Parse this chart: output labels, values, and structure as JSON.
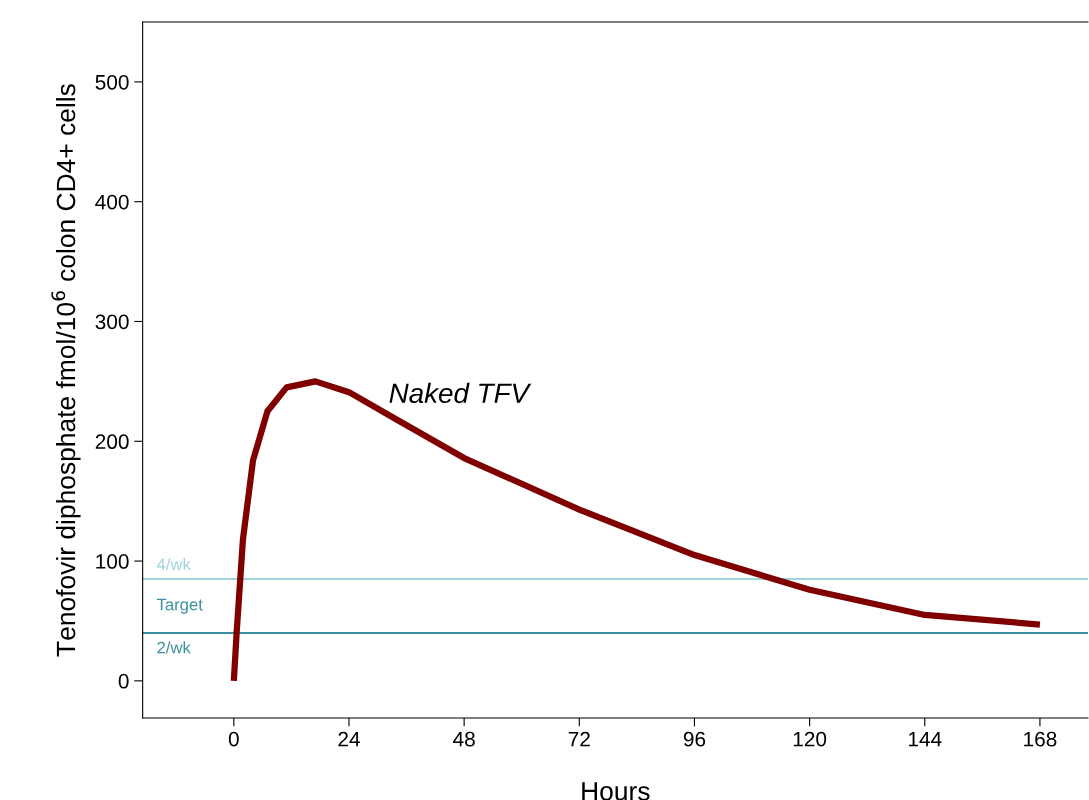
{
  "chart_data": {
    "type": "line",
    "xlabel": "Hours",
    "ylabel": "Tenofovir diphosphate fmol/10$^{6}$ colon CD4+ cells",
    "xlim": [
      -19,
      178
    ],
    "ylim": [
      -31,
      550
    ],
    "xticks": [
      0,
      24,
      48,
      72,
      96,
      120,
      144,
      168
    ],
    "yticks": [
      0,
      100,
      200,
      300,
      400,
      500
    ],
    "grid": false,
    "legend": false,
    "marker": "none",
    "line_style": "solid",
    "series": [
      {
        "name": "Naked TFV",
        "color": "#800000",
        "x": [
          0,
          0.6,
          1.9,
          4,
          7,
          11,
          17,
          24,
          34,
          48,
          72,
          96,
          120,
          144,
          168
        ],
        "values": [
          0,
          41,
          118,
          184,
          225,
          245,
          250,
          241,
          218,
          186,
          143,
          105,
          76,
          55,
          47
        ]
      }
    ],
    "ref_lines": [
      {
        "axis": "y",
        "value": 85,
        "label": "4/wk",
        "color": "#9fd4dc",
        "line_style": "solid"
      },
      {
        "axis": "y",
        "value": 40,
        "label": "2/wk",
        "color": "#3a8fa0",
        "line_style": "solid"
      }
    ],
    "annotations": [
      "Target"
    ]
  }
}
